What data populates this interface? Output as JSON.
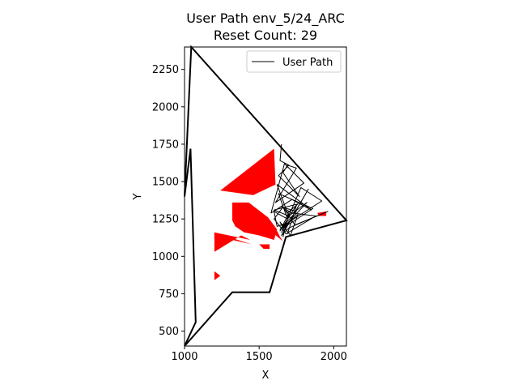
{
  "chart_data": {
    "type": "line",
    "title": "User Path env_5/24_ARC",
    "subtitle": "Reset Count: 29",
    "xlabel": "X",
    "ylabel": "Y",
    "xlim": [
      1000,
      2085
    ],
    "ylim": [
      400,
      2400
    ],
    "xticks": [
      1000,
      1500,
      2000
    ],
    "yticks": [
      500,
      750,
      1000,
      1250,
      1500,
      1750,
      2000,
      2250
    ],
    "grid": false,
    "legend": {
      "placement": "top-right",
      "entries": [
        "User Path"
      ]
    },
    "colors": {
      "boundary": "#000000",
      "obstacles": "#ff0000",
      "path": "#000000"
    },
    "boundary": [
      [
        1000,
        400
      ],
      [
        1075,
        560
      ],
      [
        1040,
        1720
      ],
      [
        1000,
        1400
      ],
      [
        1045,
        2400
      ],
      [
        2085,
        1240
      ],
      [
        1680,
        1130
      ],
      [
        1570,
        760
      ],
      [
        1320,
        760
      ],
      [
        1000,
        400
      ]
    ],
    "obstacles": [
      [
        [
          1240,
          1440
        ],
        [
          1600,
          1720
        ],
        [
          1610,
          1480
        ],
        [
          1460,
          1410
        ]
      ],
      [
        [
          1320,
          1360
        ],
        [
          1430,
          1360
        ],
        [
          1560,
          1260
        ],
        [
          1620,
          1180
        ],
        [
          1600,
          1110
        ],
        [
          1500,
          1140
        ],
        [
          1400,
          1160
        ],
        [
          1340,
          1200
        ],
        [
          1320,
          1240
        ]
      ],
      [
        [
          1200,
          1160
        ],
        [
          1450,
          1080
        ],
        [
          1320,
          1110
        ],
        [
          1220,
          1110
        ],
        [
          1200,
          1120
        ]
      ],
      [
        [
          1200,
          1160
        ],
        [
          1440,
          1110
        ],
        [
          1380,
          1140
        ],
        [
          1200,
          1030
        ]
      ],
      [
        [
          1500,
          1080
        ],
        [
          1570,
          1080
        ],
        [
          1570,
          1050
        ],
        [
          1530,
          1050
        ]
      ],
      [
        [
          1600,
          1210
        ],
        [
          1640,
          1130
        ],
        [
          1660,
          1100
        ],
        [
          1600,
          1150
        ]
      ],
      [
        [
          1200,
          900
        ],
        [
          1240,
          870
        ],
        [
          1200,
          840
        ]
      ],
      [
        [
          1890,
          1290
        ],
        [
          1950,
          1300
        ],
        [
          1950,
          1270
        ],
        [
          1900,
          1270
        ]
      ]
    ],
    "series": [
      {
        "name": "User Path",
        "x": [
          1650,
          1640,
          1700,
          1630,
          1770,
          1660,
          1690,
          1750,
          1610,
          1800,
          1670,
          1580,
          1720,
          1850,
          1620,
          1690,
          1760,
          1600,
          1700,
          1820,
          1660,
          1740,
          1860,
          1630,
          1690,
          1780,
          1920,
          1700,
          1640,
          1750,
          1650,
          1720,
          1880,
          1680,
          1600,
          1660,
          1740,
          1960,
          1700,
          1650,
          1830,
          1670,
          1640,
          1710,
          1760,
          1670,
          1650,
          1690,
          1600,
          1620,
          1680,
          1660,
          1700,
          1640,
          1750,
          1690
        ],
        "y": [
          1750,
          1640,
          1610,
          1540,
          1400,
          1560,
          1610,
          1590,
          1360,
          1490,
          1620,
          1290,
          1380,
          1310,
          1480,
          1290,
          1350,
          1310,
          1270,
          1360,
          1190,
          1240,
          1320,
          1420,
          1250,
          1460,
          1370,
          1230,
          1180,
          1300,
          1330,
          1290,
          1270,
          1150,
          1250,
          1330,
          1210,
          1300,
          1190,
          1140,
          1450,
          1170,
          1230,
          1140,
          1280,
          1200,
          1160,
          1250,
          1300,
          1200,
          1220,
          1130,
          1290,
          1170,
          1340,
          1150
        ]
      }
    ]
  }
}
